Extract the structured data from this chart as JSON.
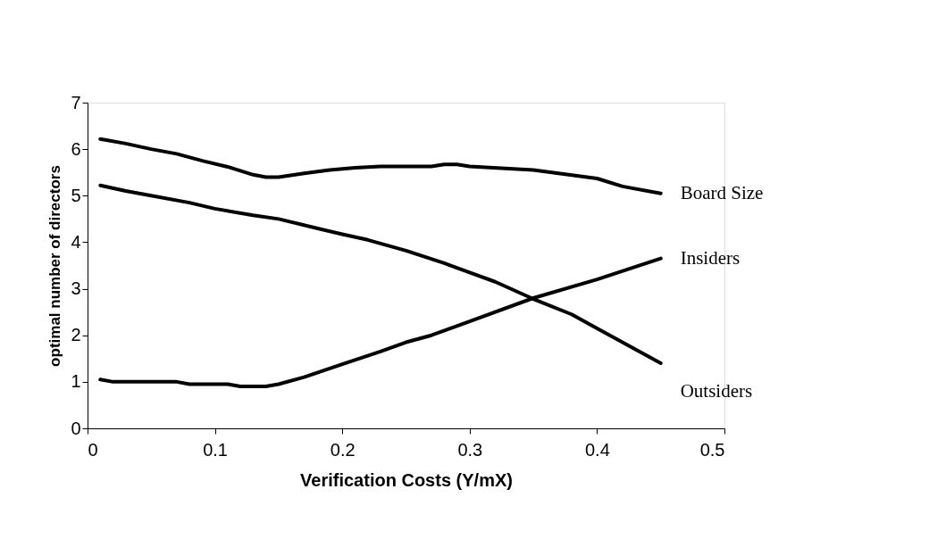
{
  "chart_data": {
    "type": "line",
    "xlabel": "Verification Costs (Y/mX)",
    "ylabel": "optimal number of directors",
    "xlim": [
      0,
      0.5
    ],
    "xticks": [
      0,
      0.1,
      0.2,
      0.3,
      0.4,
      0.5
    ],
    "ylim": [
      0,
      7
    ],
    "yticks": [
      0,
      1,
      2,
      3,
      4,
      5,
      6,
      7
    ],
    "grid": false,
    "legend": false,
    "marker": "none",
    "line_style": "solid",
    "series": [
      {
        "name": "Board Size",
        "color": "#000000",
        "x": [
          0.01,
          0.03,
          0.05,
          0.07,
          0.09,
          0.11,
          0.13,
          0.14,
          0.15,
          0.17,
          0.19,
          0.21,
          0.23,
          0.27,
          0.28,
          0.29,
          0.3,
          0.35,
          0.4,
          0.42,
          0.45
        ],
        "values": [
          6.22,
          6.12,
          6.0,
          5.9,
          5.75,
          5.62,
          5.45,
          5.4,
          5.4,
          5.48,
          5.55,
          5.6,
          5.63,
          5.63,
          5.67,
          5.67,
          5.63,
          5.55,
          5.37,
          5.2,
          5.05
        ]
      },
      {
        "name": "Insiders",
        "color": "#000000",
        "x": [
          0.01,
          0.02,
          0.07,
          0.08,
          0.11,
          0.12,
          0.14,
          0.15,
          0.17,
          0.2,
          0.23,
          0.25,
          0.27,
          0.3,
          0.35,
          0.4,
          0.45
        ],
        "values": [
          1.05,
          1.0,
          1.0,
          0.95,
          0.95,
          0.9,
          0.9,
          0.95,
          1.1,
          1.38,
          1.65,
          1.85,
          2.0,
          2.3,
          2.8,
          3.2,
          3.65
        ]
      },
      {
        "name": "Outsiders",
        "color": "#000000",
        "x": [
          0.01,
          0.03,
          0.05,
          0.08,
          0.1,
          0.13,
          0.15,
          0.18,
          0.2,
          0.22,
          0.25,
          0.28,
          0.3,
          0.32,
          0.35,
          0.38,
          0.4,
          0.45
        ],
        "values": [
          5.22,
          5.1,
          5.0,
          4.85,
          4.72,
          4.58,
          4.5,
          4.3,
          4.17,
          4.05,
          3.82,
          3.55,
          3.35,
          3.15,
          2.78,
          2.45,
          2.15,
          1.4
        ]
      }
    ]
  }
}
